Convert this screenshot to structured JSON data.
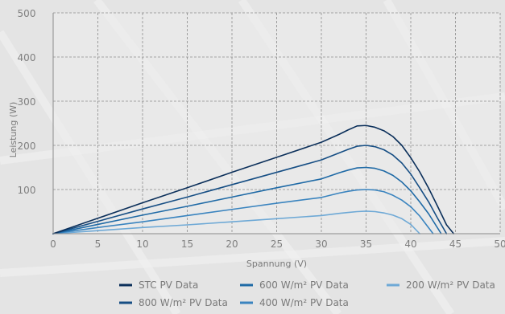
{
  "chart_data": {
    "type": "line",
    "xlabel": "Spannung (V)",
    "ylabel": "Leistung (W)",
    "xlim": [
      0,
      50
    ],
    "ylim": [
      0,
      500
    ],
    "x_ticks": [
      0,
      5,
      10,
      15,
      20,
      25,
      30,
      35,
      40,
      45,
      50
    ],
    "y_ticks": [
      100,
      200,
      300,
      400,
      500
    ],
    "x_tick_labels": [
      "0",
      "5",
      "10",
      "15",
      "20",
      "25",
      "30",
      "35",
      "40",
      "45",
      "50"
    ],
    "y_tick_labels": [
      "100",
      "200",
      "300",
      "400",
      "500"
    ],
    "grid": true,
    "legend_position": "bottom",
    "series": [
      {
        "name": "STC PV Data",
        "color": "#0b2f5a",
        "x": [
          0,
          5,
          10,
          15,
          20,
          25,
          30,
          32,
          33,
          34,
          35,
          36,
          37,
          38,
          39,
          40,
          41,
          42,
          43,
          44,
          44.8
        ],
        "y": [
          0,
          35,
          70,
          104,
          139,
          173,
          207,
          225,
          235,
          244,
          245,
          241,
          233,
          220,
          200,
          172,
          140,
          103,
          62,
          20,
          0
        ]
      },
      {
        "name": "800 W/m² PV Data",
        "color": "#164e84",
        "x": [
          0,
          5,
          10,
          15,
          20,
          25,
          30,
          32,
          33,
          34,
          35,
          36,
          37,
          38,
          39,
          40,
          41,
          42,
          43,
          44
        ],
        "y": [
          0,
          28,
          56,
          83,
          111,
          139,
          167,
          183,
          191,
          198,
          200,
          197,
          190,
          178,
          160,
          135,
          104,
          72,
          35,
          0
        ]
      },
      {
        "name": "600 W/m² PV Data",
        "color": "#1f6aa6",
        "x": [
          0,
          5,
          10,
          15,
          20,
          25,
          30,
          32,
          33,
          34,
          35,
          36,
          37,
          38,
          39,
          40,
          41,
          42,
          43.4
        ],
        "y": [
          0,
          21,
          42,
          62,
          83,
          104,
          124,
          138,
          144,
          149,
          150,
          148,
          142,
          132,
          117,
          97,
          72,
          45,
          0
        ]
      },
      {
        "name": "400 W/m² PV Data",
        "color": "#3a84bf",
        "x": [
          0,
          5,
          10,
          15,
          20,
          25,
          30,
          32,
          33,
          34,
          35,
          36,
          37,
          38,
          39,
          40,
          41,
          42.5
        ],
        "y": [
          0,
          14,
          27,
          41,
          55,
          69,
          82,
          92,
          96,
          99,
          100,
          99,
          95,
          87,
          76,
          61,
          40,
          0
        ]
      },
      {
        "name": "200 W/m² PV Data",
        "color": "#6ea9d6",
        "x": [
          0,
          5,
          10,
          15,
          20,
          25,
          30,
          32,
          33,
          34,
          35,
          36,
          37,
          38,
          39,
          40,
          41
        ],
        "y": [
          0,
          7,
          14,
          20,
          27,
          34,
          41,
          46,
          48,
          50,
          51,
          50,
          47,
          42,
          34,
          21,
          0
        ]
      }
    ]
  }
}
